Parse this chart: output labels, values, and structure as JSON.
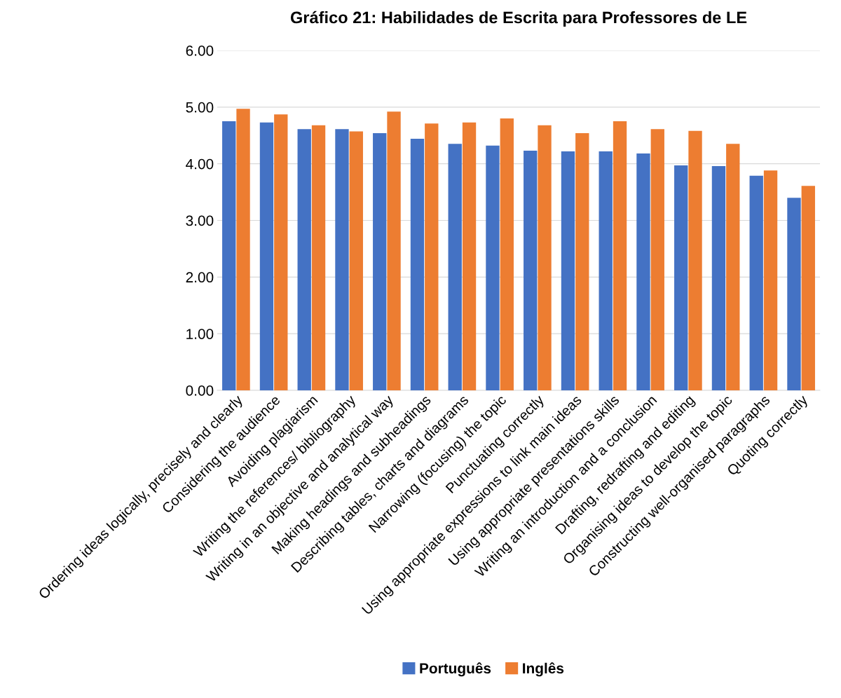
{
  "chart_data": {
    "type": "bar",
    "title": "Gráfico 21: Habilidades de Escrita para Professores de LE",
    "categories": [
      "Ordering ideas logically, precisely and clearly",
      "Considering the audience",
      "Avoiding plagiarism",
      "Writing the references/ bibliography",
      "Writing in an objective and analytical way",
      "Making headings and subheadings",
      "Describing tables, charts and diagrams",
      "Narrowing (focusing) the topic",
      "Punctuating correctly",
      "Using appropriate expressions to link main ideas",
      "Using appropriate presentations skills",
      "Writing an introduction and a conclusion",
      "Drafting, redrafting and editing",
      "Organising ideas to develop the topic",
      "Constructing well-organised paragraphs",
      "Quoting correctly"
    ],
    "series": [
      {
        "name": "Português",
        "color": "#4472c4",
        "values": [
          4.75,
          4.73,
          4.61,
          4.61,
          4.54,
          4.44,
          4.35,
          4.32,
          4.23,
          4.22,
          4.22,
          4.18,
          3.97,
          3.96,
          3.79,
          3.4
        ]
      },
      {
        "name": "Inglês",
        "color": "#ed7d31",
        "values": [
          4.97,
          4.87,
          4.68,
          4.57,
          4.92,
          4.71,
          4.73,
          4.8,
          4.68,
          4.54,
          4.75,
          4.61,
          4.58,
          4.35,
          3.88,
          3.61
        ]
      }
    ],
    "ylim": [
      0,
      6
    ],
    "yticks": [
      {
        "value": 0,
        "label": "0.00"
      },
      {
        "value": 1,
        "label": "1.00"
      },
      {
        "value": 2,
        "label": "2.00"
      },
      {
        "value": 3,
        "label": "3.00"
      },
      {
        "value": 4,
        "label": "4.00"
      },
      {
        "value": 5,
        "label": "5.00"
      },
      {
        "value": 6,
        "label": "6.00"
      }
    ],
    "grid": "y",
    "legend": "bottom"
  }
}
